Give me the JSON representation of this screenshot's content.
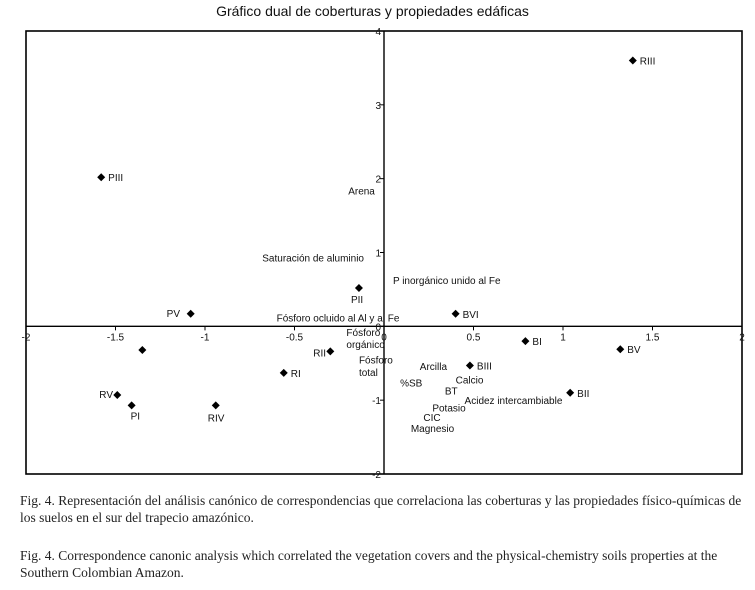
{
  "chart_data": {
    "type": "scatter",
    "title": "Gráfico dual de coberturas y propiedades edáficas",
    "xlim": [
      -2,
      2
    ],
    "ylim": [
      -2,
      4
    ],
    "x_ticks": [
      {
        "value": -2,
        "label": "-2"
      },
      {
        "value": -1.5,
        "label": "-1.5"
      },
      {
        "value": -1,
        "label": "-1"
      },
      {
        "value": -0.5,
        "label": "-0.5"
      },
      {
        "value": 0,
        "label": "0"
      },
      {
        "value": 0.5,
        "label": "0.5"
      },
      {
        "value": 1,
        "label": "1"
      },
      {
        "value": 1.5,
        "label": "1.5"
      },
      {
        "value": 2,
        "label": "2"
      }
    ],
    "y_ticks": [
      {
        "value": -2,
        "label": "-2"
      },
      {
        "value": -1,
        "label": "-1"
      },
      {
        "value": 0,
        "label": "0"
      },
      {
        "value": 1,
        "label": "1"
      },
      {
        "value": 2,
        "label": "2"
      },
      {
        "value": 3,
        "label": "3"
      },
      {
        "value": 4,
        "label": "4"
      }
    ],
    "grid": false,
    "points": [
      {
        "label": "RIII",
        "x": 1.39,
        "y": 3.6
      },
      {
        "label": "PIII",
        "x": -1.58,
        "y": 2.02
      },
      {
        "label": "PII",
        "x": -0.14,
        "y": 0.52
      },
      {
        "label": "BVI",
        "x": 0.4,
        "y": 0.17
      },
      {
        "label": "PV",
        "x": -1.08,
        "y": 0.17
      },
      {
        "label": "",
        "x": -1.35,
        "y": -0.32
      },
      {
        "label": "RII",
        "x": -0.3,
        "y": -0.34
      },
      {
        "label": "RI",
        "x": -0.56,
        "y": -0.63
      },
      {
        "label": "BI",
        "x": 0.79,
        "y": -0.2
      },
      {
        "label": "BIII",
        "x": 0.48,
        "y": -0.53
      },
      {
        "label": "BV",
        "x": 1.32,
        "y": -0.31
      },
      {
        "label": "BII",
        "x": 1.04,
        "y": -0.9
      },
      {
        "label": "RV",
        "x": -1.49,
        "y": -0.93
      },
      {
        "label": "PI",
        "x": -1.41,
        "y": -1.07
      },
      {
        "label": "RIV",
        "x": -0.94,
        "y": -1.07
      }
    ],
    "variable_labels": [
      {
        "text": "Arena",
        "x": -0.2,
        "y": 1.84
      },
      {
        "text": "Saturación de aluminio",
        "x": -0.68,
        "y": 0.93
      },
      {
        "text": "P inorgánico unido al Fe",
        "x": 0.05,
        "y": 0.63
      },
      {
        "text": "Fósforo ocluido al Al y al Fe",
        "x": -0.6,
        "y": 0.12
      },
      {
        "text": "Fósforo",
        "x": -0.21,
        "y": -0.08
      },
      {
        "text": "orgánico",
        "x": -0.21,
        "y": -0.24
      },
      {
        "text": "Fósforo",
        "x": -0.14,
        "y": -0.45
      },
      {
        "text": "total",
        "x": -0.14,
        "y": -0.62
      },
      {
        "text": "Arcilla",
        "x": 0.2,
        "y": -0.54
      },
      {
        "text": "%SB",
        "x": 0.09,
        "y": -0.76
      },
      {
        "text": "Calcio",
        "x": 0.4,
        "y": -0.72
      },
      {
        "text": "BT",
        "x": 0.34,
        "y": -0.87
      },
      {
        "text": "Acidez intercambiable",
        "x": 0.45,
        "y": -1.0
      },
      {
        "text": "Potasio",
        "x": 0.27,
        "y": -1.1
      },
      {
        "text": "CIC",
        "x": 0.22,
        "y": -1.23
      },
      {
        "text": "Magnesio",
        "x": 0.15,
        "y": -1.38
      }
    ]
  },
  "captions": {
    "spanish": "Fig. 4. Representación del análisis canónico de correspondencias que correlaciona las coberturas y las propiedades físico-químicas de los suelos en el sur del trapecio amazónico.",
    "english": "Fig. 4. Correspondence canonic analysis which correlated the vegetation covers and the physical-chemistry soils properties at the Southern Colombian Amazon."
  }
}
